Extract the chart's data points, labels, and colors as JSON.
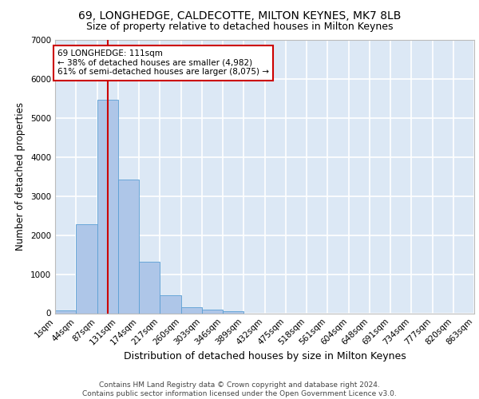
{
  "title1": "69, LONGHEDGE, CALDECOTTE, MILTON KEYNES, MK7 8LB",
  "title2": "Size of property relative to detached houses in Milton Keynes",
  "xlabel": "Distribution of detached houses by size in Milton Keynes",
  "ylabel": "Number of detached properties",
  "footer1": "Contains HM Land Registry data © Crown copyright and database right 2024.",
  "footer2": "Contains public sector information licensed under the Open Government Licence v3.0.",
  "bar_values": [
    80,
    2270,
    5470,
    3430,
    1310,
    460,
    155,
    90,
    55,
    0,
    0,
    0,
    0,
    0,
    0,
    0,
    0,
    0,
    0,
    0
  ],
  "bin_labels": [
    "1sqm",
    "44sqm",
    "87sqm",
    "131sqm",
    "174sqm",
    "217sqm",
    "260sqm",
    "303sqm",
    "346sqm",
    "389sqm",
    "432sqm",
    "475sqm",
    "518sqm",
    "561sqm",
    "604sqm",
    "648sqm",
    "691sqm",
    "734sqm",
    "777sqm",
    "820sqm",
    "863sqm"
  ],
  "bar_color": "#aec6e8",
  "bar_edge_color": "#5a9fd4",
  "vline_x": 2.5,
  "vline_color": "#cc0000",
  "annotation_text": "69 LONGHEDGE: 111sqm\n← 38% of detached houses are smaller (4,982)\n61% of semi-detached houses are larger (8,075) →",
  "annotation_box_color": "#ffffff",
  "annotation_box_edge": "#cc0000",
  "ylim": [
    0,
    7000
  ],
  "yticks": [
    0,
    1000,
    2000,
    3000,
    4000,
    5000,
    6000,
    7000
  ],
  "background_color": "#dce8f5",
  "grid_color": "#ffffff",
  "title1_fontsize": 10,
  "title2_fontsize": 9,
  "xlabel_fontsize": 9,
  "ylabel_fontsize": 8.5,
  "tick_fontsize": 7.5,
  "footer_fontsize": 6.5
}
